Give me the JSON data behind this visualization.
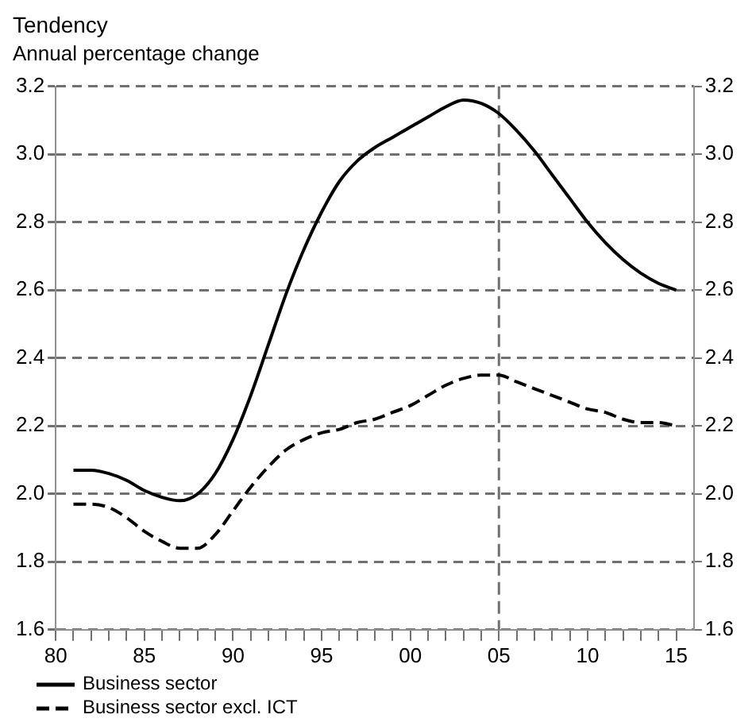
{
  "chart_data": {
    "type": "line",
    "title": "Tendency",
    "subtitle": "Annual percentage change",
    "x": [
      1981,
      1982,
      1983,
      1984,
      1985,
      1986,
      1987,
      1988,
      1989,
      1990,
      1991,
      1992,
      1993,
      1994,
      1995,
      1996,
      1997,
      1998,
      1999,
      2000,
      2001,
      2002,
      2003,
      2004,
      2005,
      2006,
      2007,
      2008,
      2009,
      2010,
      2011,
      2012,
      2013,
      2014,
      2015
    ],
    "series": [
      {
        "name": "Business sector",
        "color": "#000000",
        "line_style": "solid",
        "values": [
          2.07,
          2.07,
          2.06,
          2.04,
          2.01,
          1.99,
          1.98,
          2.0,
          2.06,
          2.16,
          2.29,
          2.44,
          2.59,
          2.72,
          2.83,
          2.92,
          2.98,
          3.02,
          3.05,
          3.08,
          3.11,
          3.14,
          3.16,
          3.15,
          3.12,
          3.07,
          3.01,
          2.94,
          2.87,
          2.8,
          2.74,
          2.69,
          2.65,
          2.62,
          2.6
        ]
      },
      {
        "name": "Business sector excl. ICT",
        "color": "#000000",
        "line_style": "dashed",
        "values": [
          1.97,
          1.97,
          1.96,
          1.93,
          1.89,
          1.86,
          1.84,
          1.84,
          1.88,
          1.95,
          2.02,
          2.08,
          2.13,
          2.16,
          2.18,
          2.19,
          2.21,
          2.22,
          2.24,
          2.26,
          2.29,
          2.32,
          2.34,
          2.35,
          2.35,
          2.33,
          2.31,
          2.29,
          2.27,
          2.25,
          2.24,
          2.22,
          2.21,
          2.21,
          2.2
        ]
      }
    ],
    "xlim": [
      1980,
      2016
    ],
    "xticks": [
      {
        "value": 1980,
        "label": "80"
      },
      {
        "value": 1981,
        "label": null
      },
      {
        "value": 1982,
        "label": null
      },
      {
        "value": 1983,
        "label": null
      },
      {
        "value": 1984,
        "label": null
      },
      {
        "value": 1985,
        "label": "85"
      },
      {
        "value": 1986,
        "label": null
      },
      {
        "value": 1987,
        "label": null
      },
      {
        "value": 1988,
        "label": null
      },
      {
        "value": 1989,
        "label": null
      },
      {
        "value": 1990,
        "label": "90"
      },
      {
        "value": 1991,
        "label": null
      },
      {
        "value": 1992,
        "label": null
      },
      {
        "value": 1993,
        "label": null
      },
      {
        "value": 1994,
        "label": null
      },
      {
        "value": 1995,
        "label": "95"
      },
      {
        "value": 1996,
        "label": null
      },
      {
        "value": 1997,
        "label": null
      },
      {
        "value": 1998,
        "label": null
      },
      {
        "value": 1999,
        "label": null
      },
      {
        "value": 2000,
        "label": "00"
      },
      {
        "value": 2001,
        "label": null
      },
      {
        "value": 2002,
        "label": null
      },
      {
        "value": 2003,
        "label": null
      },
      {
        "value": 2004,
        "label": null
      },
      {
        "value": 2005,
        "label": "05"
      },
      {
        "value": 2006,
        "label": null
      },
      {
        "value": 2007,
        "label": null
      },
      {
        "value": 2008,
        "label": null
      },
      {
        "value": 2009,
        "label": null
      },
      {
        "value": 2010,
        "label": "10"
      },
      {
        "value": 2011,
        "label": null
      },
      {
        "value": 2012,
        "label": null
      },
      {
        "value": 2013,
        "label": null
      },
      {
        "value": 2014,
        "label": null
      },
      {
        "value": 2015,
        "label": "15"
      }
    ],
    "ylim": [
      1.6,
      3.2
    ],
    "yticks": [
      1.6,
      1.8,
      {
        "value": 2,
        "label": "2.0"
      },
      2.2,
      2.4,
      2.6,
      2.8,
      {
        "value": 3,
        "label": "3.0"
      },
      3.2
    ],
    "y2lim": [
      1.6,
      3.2
    ],
    "y2ticks": [
      1.6,
      1.8,
      {
        "value": 2,
        "label": "2.0"
      },
      2.2,
      2.4,
      2.6,
      2.8,
      {
        "value": 3,
        "label": "3.0"
      },
      3.2
    ],
    "ref_lines": [
      {
        "axis": "x",
        "value": 2005,
        "color": "#707070",
        "line_style": "dashed"
      }
    ],
    "grid": "y",
    "legend": "bottom left",
    "marker": "none"
  }
}
